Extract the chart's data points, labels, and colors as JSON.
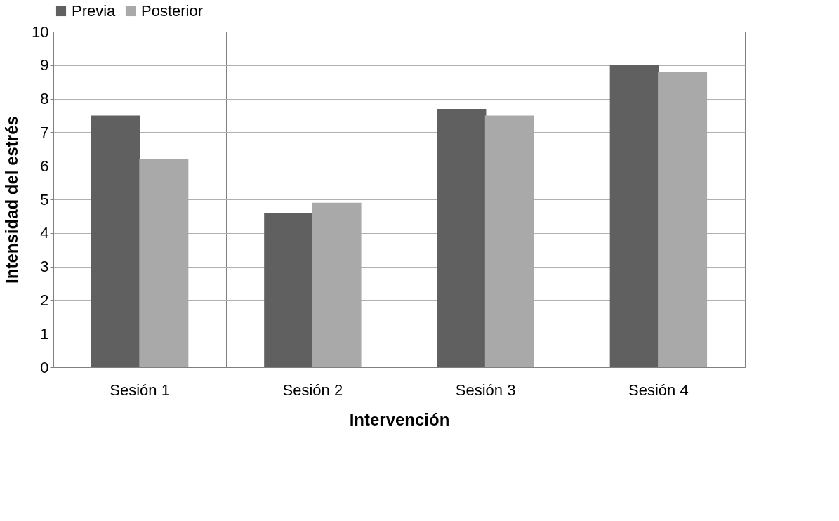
{
  "chart_data": {
    "type": "bar",
    "xlabel": "Intervención",
    "ylabel": "Intensidad del estrés",
    "categories": [
      "Sesión 1",
      "Sesión 2",
      "Sesión 3",
      "Sesión 4"
    ],
    "series": [
      {
        "name": "Previa",
        "color": "#606060",
        "values": [
          7.5,
          4.6,
          7.7,
          9.0
        ]
      },
      {
        "name": "Posterior",
        "color": "#a9a9a9",
        "values": [
          6.2,
          4.9,
          7.5,
          8.8
        ]
      }
    ],
    "ylim": [
      0,
      10
    ],
    "yticks": [
      0,
      1,
      2,
      3,
      4,
      5,
      6,
      7,
      8,
      9,
      10
    ],
    "grid": true,
    "legend": "top"
  }
}
